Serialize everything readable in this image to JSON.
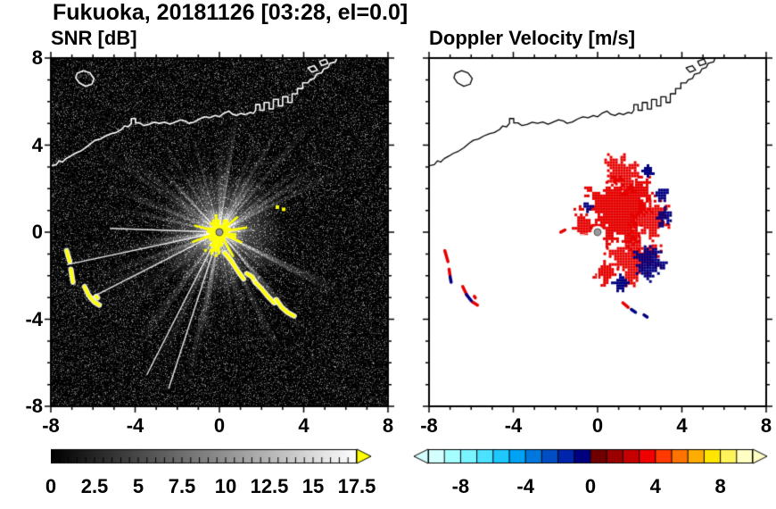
{
  "header": {
    "title": "Fukuoka, 20181126 [03:28, el=0.0]",
    "station": "Fukuoka",
    "date": "20181126",
    "time": "03:28",
    "elevation_deg": 0.0
  },
  "chart_data": {
    "type": "heatmap",
    "subtype": "radar-ppi-pair",
    "title": "Fukuoka, 20181126 [03:28, el=0.0]",
    "radar_center": [
      0,
      0
    ],
    "panels": [
      {
        "id": "snr",
        "title": "SNR [dB]",
        "xlim": [
          -8,
          8
        ],
        "ylim": [
          -8,
          8
        ],
        "xticks": [
          -8,
          -4,
          0,
          4,
          8
        ],
        "xtick_labels": [
          "-8",
          "-4",
          "0",
          "4",
          "8"
        ],
        "yticks": [
          8,
          4,
          0,
          -4,
          -8
        ],
        "ytick_labels": [
          "8",
          "4",
          "0",
          "-4",
          "-8"
        ],
        "background": "#000000",
        "colorbar": {
          "min": 0,
          "max": 17.5,
          "tick_values": [
            0,
            2.5,
            5,
            7.5,
            10,
            12.5,
            15,
            17.5
          ],
          "tick_labels": [
            "0",
            "2.5",
            "5",
            "7.5",
            "10",
            "12.5",
            "15",
            "17.5"
          ],
          "palette": "grayscale-black-to-white",
          "over_arrow_color": "#ffff00"
        }
      },
      {
        "id": "velocity",
        "title": "Doppler Velocity [m/s]",
        "xlim": [
          -8,
          8
        ],
        "ylim": [
          -8,
          8
        ],
        "xticks": [
          -8,
          -4,
          0,
          4,
          8
        ],
        "xtick_labels": [
          "-8",
          "-4",
          "0",
          "4",
          "8"
        ],
        "background": "#ffffff",
        "colorbar": {
          "min": -10,
          "max": 10,
          "tick_values": [
            -8,
            -4,
            0,
            4,
            8
          ],
          "tick_labels": [
            "-8",
            "-4",
            "0",
            "4",
            "8"
          ],
          "palette": [
            "#d4ffff",
            "#a6ffff",
            "#79f4ff",
            "#4be1ff",
            "#1ec8ff",
            "#00a2f5",
            "#0077dd",
            "#004dc4",
            "#0024ab",
            "#000080",
            "#700000",
            "#9b0000",
            "#c60000",
            "#f10000",
            "#ff3a00",
            "#ff7300",
            "#ffad00",
            "#ffe600",
            "#fff35c",
            "#ffffc4"
          ]
        }
      }
    ],
    "coastline": {
      "main": [
        [
          -8.0,
          3.05
        ],
        [
          -7.75,
          3.1
        ],
        [
          -7.6,
          3.28
        ],
        [
          -7.45,
          3.22
        ],
        [
          -7.28,
          3.38
        ],
        [
          -7.05,
          3.5
        ],
        [
          -6.85,
          3.62
        ],
        [
          -6.6,
          3.72
        ],
        [
          -6.35,
          3.88
        ],
        [
          -6.1,
          4.08
        ],
        [
          -5.9,
          4.22
        ],
        [
          -5.65,
          4.28
        ],
        [
          -5.4,
          4.42
        ],
        [
          -5.15,
          4.52
        ],
        [
          -4.9,
          4.58
        ],
        [
          -4.65,
          4.72
        ],
        [
          -4.5,
          4.88
        ],
        [
          -4.32,
          4.84
        ],
        [
          -4.18,
          5.0
        ],
        [
          -4.18,
          5.22
        ],
        [
          -3.98,
          5.22
        ],
        [
          -3.98,
          5.02
        ],
        [
          -3.78,
          5.02
        ],
        [
          -3.6,
          4.9
        ],
        [
          -3.35,
          4.95
        ],
        [
          -3.1,
          5.05
        ],
        [
          -2.85,
          5.0
        ],
        [
          -2.6,
          5.06
        ],
        [
          -2.35,
          4.96
        ],
        [
          -2.1,
          5.06
        ],
        [
          -1.85,
          5.16
        ],
        [
          -1.6,
          5.1
        ],
        [
          -1.45,
          5.0
        ],
        [
          -1.2,
          5.06
        ],
        [
          -0.95,
          5.2
        ],
        [
          -0.7,
          5.3
        ],
        [
          -0.45,
          5.26
        ],
        [
          -0.2,
          5.36
        ],
        [
          0.0,
          5.3
        ],
        [
          0.2,
          5.46
        ],
        [
          0.45,
          5.56
        ],
        [
          0.62,
          5.42
        ],
        [
          0.82,
          5.36
        ],
        [
          1.02,
          5.46
        ],
        [
          1.22,
          5.4
        ],
        [
          1.45,
          5.5
        ],
        [
          1.62,
          5.46
        ],
        [
          1.72,
          5.6
        ],
        [
          1.72,
          5.86
        ],
        [
          1.92,
          5.86
        ],
        [
          1.92,
          5.6
        ],
        [
          2.12,
          5.6
        ],
        [
          2.12,
          5.96
        ],
        [
          2.36,
          5.96
        ],
        [
          2.36,
          5.66
        ],
        [
          2.56,
          5.66
        ],
        [
          2.56,
          6.1
        ],
        [
          2.8,
          6.1
        ],
        [
          2.8,
          5.8
        ],
        [
          3.0,
          5.8
        ],
        [
          3.0,
          6.22
        ],
        [
          3.25,
          6.22
        ],
        [
          3.25,
          5.96
        ],
        [
          3.45,
          5.96
        ],
        [
          3.45,
          6.36
        ],
        [
          3.7,
          6.36
        ],
        [
          3.7,
          6.6
        ],
        [
          3.95,
          6.6
        ],
        [
          3.95,
          6.86
        ],
        [
          4.2,
          6.86
        ],
        [
          4.3,
          7.0
        ],
        [
          4.5,
          7.06
        ],
        [
          4.6,
          7.26
        ],
        [
          4.85,
          7.32
        ],
        [
          4.95,
          7.5
        ],
        [
          5.15,
          7.56
        ],
        [
          5.25,
          7.76
        ],
        [
          5.5,
          7.82
        ],
        [
          5.6,
          8.05
        ]
      ],
      "island": [
        [
          -6.75,
          7.3
        ],
        [
          -6.45,
          7.42
        ],
        [
          -6.15,
          7.32
        ],
        [
          -5.95,
          7.06
        ],
        [
          -6.05,
          6.8
        ],
        [
          -6.35,
          6.7
        ],
        [
          -6.65,
          6.86
        ],
        [
          -6.82,
          7.1
        ]
      ],
      "breakwaters": [
        [
          [
            4.2,
            7.55
          ],
          [
            4.5,
            7.65
          ],
          [
            4.65,
            7.45
          ],
          [
            4.38,
            7.35
          ]
        ],
        [
          [
            4.75,
            7.85
          ],
          [
            5.05,
            7.95
          ],
          [
            5.15,
            7.75
          ],
          [
            4.85,
            7.65
          ]
        ]
      ]
    },
    "snr_features": {
      "center_blob_color": "#ffff00",
      "beams": [
        [
          192,
          7.4
        ],
        [
          207,
          7.0
        ],
        [
          243,
          7.6
        ],
        [
          252,
          7.8
        ],
        [
          178,
          5.2
        ]
      ],
      "shadow_rays": [
        [
          299,
          0.5,
          6.2
        ],
        [
          307,
          0.5,
          6.2
        ],
        [
          318,
          0.4,
          6.0
        ]
      ],
      "terrain_arcs": [
        [
          [
            0.25,
            -0.95
          ],
          [
            0.55,
            -1.3
          ],
          [
            0.85,
            -1.75
          ],
          [
            1.15,
            -2.15
          ]
        ],
        [
          [
            1.3,
            -1.9
          ],
          [
            1.55,
            -2.05
          ],
          [
            1.7,
            -2.3
          ]
        ],
        [
          [
            1.7,
            -2.3
          ],
          [
            2.0,
            -2.6
          ],
          [
            2.3,
            -2.95
          ],
          [
            2.6,
            -3.25
          ]
        ],
        [
          [
            2.7,
            -3.1
          ],
          [
            2.95,
            -3.45
          ],
          [
            3.25,
            -3.7
          ],
          [
            3.55,
            -3.85
          ]
        ]
      ],
      "left_arcs": [
        [
          [
            -7.25,
            -0.85
          ],
          [
            -7.1,
            -1.35
          ]
        ],
        [
          [
            -7.05,
            -1.7
          ],
          [
            -6.95,
            -2.3
          ]
        ],
        [
          [
            -6.4,
            -2.5
          ],
          [
            -6.2,
            -2.9
          ],
          [
            -5.95,
            -3.2
          ],
          [
            -5.7,
            -3.35
          ]
        ],
        [
          [
            -5.85,
            -2.95
          ],
          [
            -5.78,
            -3.02
          ]
        ]
      ],
      "specks": [
        [
          2.75,
          1.15
        ],
        [
          3.05,
          1.05
        ]
      ]
    },
    "velocity_features": {
      "positive_color": "#e60000",
      "negative_color": "#000080",
      "red_lobes": [
        [
          0.9,
          1.1,
          1.7
        ],
        [
          1.15,
          2.7,
          1.0
        ],
        [
          2.5,
          0.7,
          1.0
        ],
        [
          1.7,
          -1.2,
          1.1
        ],
        [
          -0.7,
          0.35,
          0.55
        ],
        [
          0.3,
          -1.8,
          0.5
        ]
      ],
      "navy_patches": [
        [
          2.45,
          -1.35,
          0.85
        ],
        [
          3.05,
          0.8,
          0.5
        ],
        [
          2.95,
          1.8,
          0.4
        ],
        [
          1.05,
          -2.3,
          0.5
        ],
        [
          2.3,
          2.9,
          0.35
        ],
        [
          -0.55,
          1.25,
          0.3
        ]
      ],
      "gap_wedges": [
        [
          188,
          1.2,
          5.2
        ],
        [
          203,
          1.0,
          5.4
        ],
        [
          248,
          1.3,
          4.5
        ],
        [
          257,
          1.0,
          4.5
        ],
        [
          270,
          0.9,
          2.6
        ],
        [
          215,
          0.8,
          3.5
        ]
      ],
      "red_dashes": [
        [
          [
            -7.25,
            -0.85
          ],
          [
            -7.1,
            -1.35
          ]
        ],
        [
          [
            -7.05,
            -1.7
          ],
          [
            -7.0,
            -2.0
          ]
        ],
        [
          [
            -6.4,
            -2.5
          ],
          [
            -6.2,
            -2.9
          ]
        ],
        [
          [
            -5.95,
            -3.2
          ],
          [
            -5.7,
            -3.35
          ]
        ],
        [
          [
            1.2,
            -3.25
          ],
          [
            1.45,
            -3.45
          ]
        ],
        [
          [
            -5.85,
            -2.95
          ],
          [
            -5.8,
            -3.02
          ]
        ],
        [
          [
            -1.55,
            0.1
          ],
          [
            -1.75,
            0.0
          ]
        ]
      ],
      "navy_dashes": [
        [
          [
            -7.0,
            -2.05
          ],
          [
            -6.95,
            -2.3
          ]
        ],
        [
          [
            -6.22,
            -2.87
          ],
          [
            -6.0,
            -3.15
          ]
        ],
        [
          [
            1.6,
            -3.55
          ],
          [
            1.8,
            -3.68
          ]
        ],
        [
          [
            2.2,
            -3.8
          ],
          [
            2.35,
            -3.9
          ]
        ]
      ]
    }
  }
}
